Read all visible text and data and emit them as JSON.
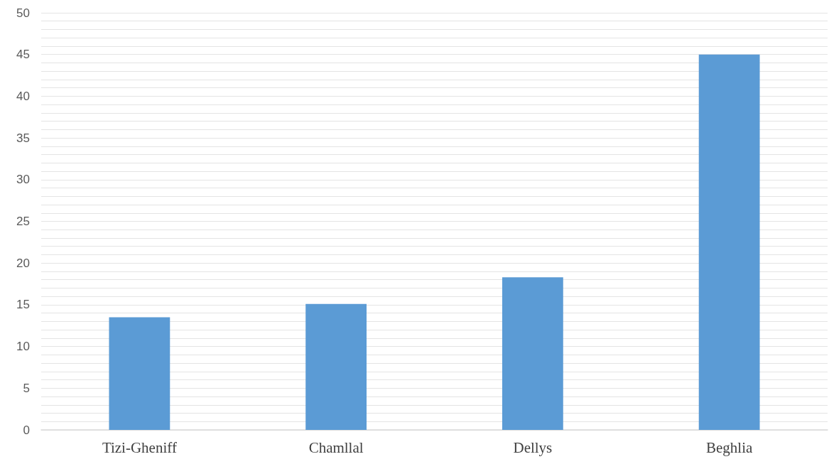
{
  "chart_data": {
    "type": "bar",
    "categories": [
      "Tizi-Gheniff",
      "Chamllal",
      "Dellys",
      "Beghlia"
    ],
    "values": [
      13.5,
      15.1,
      18.3,
      45
    ],
    "color": "#5b9bd5",
    "ylim": [
      0,
      50
    ],
    "yticks": [
      0,
      {
        "value": 1,
        "label": null
      },
      {
        "value": 2,
        "label": null
      },
      {
        "value": 3,
        "label": null
      },
      {
        "value": 4,
        "label": null
      },
      5,
      {
        "value": 6,
        "label": null
      },
      {
        "value": 7,
        "label": null
      },
      {
        "value": 8,
        "label": null
      },
      {
        "value": 9,
        "label": null
      },
      10,
      {
        "value": 11,
        "label": null
      },
      {
        "value": 12,
        "label": null
      },
      {
        "value": 13,
        "label": null
      },
      {
        "value": 14,
        "label": null
      },
      15,
      {
        "value": 16,
        "label": null
      },
      {
        "value": 17,
        "label": null
      },
      {
        "value": 18,
        "label": null
      },
      {
        "value": 19,
        "label": null
      },
      20,
      {
        "value": 21,
        "label": null
      },
      {
        "value": 22,
        "label": null
      },
      {
        "value": 23,
        "label": null
      },
      {
        "value": 24,
        "label": null
      },
      25,
      {
        "value": 26,
        "label": null
      },
      {
        "value": 27,
        "label": null
      },
      {
        "value": 28,
        "label": null
      },
      {
        "value": 29,
        "label": null
      },
      30,
      {
        "value": 31,
        "label": null
      },
      {
        "value": 32,
        "label": null
      },
      {
        "value": 33,
        "label": null
      },
      {
        "value": 34,
        "label": null
      },
      35,
      {
        "value": 36,
        "label": null
      },
      {
        "value": 37,
        "label": null
      },
      {
        "value": 38,
        "label": null
      },
      {
        "value": 39,
        "label": null
      },
      40,
      {
        "value": 41,
        "label": null
      },
      {
        "value": 42,
        "label": null
      },
      {
        "value": 43,
        "label": null
      },
      {
        "value": 44,
        "label": null
      },
      45,
      {
        "value": 46,
        "label": null
      },
      {
        "value": 47,
        "label": null
      },
      {
        "value": 48,
        "label": null
      },
      {
        "value": 49,
        "label": null
      },
      50
    ],
    "grid": "y"
  }
}
